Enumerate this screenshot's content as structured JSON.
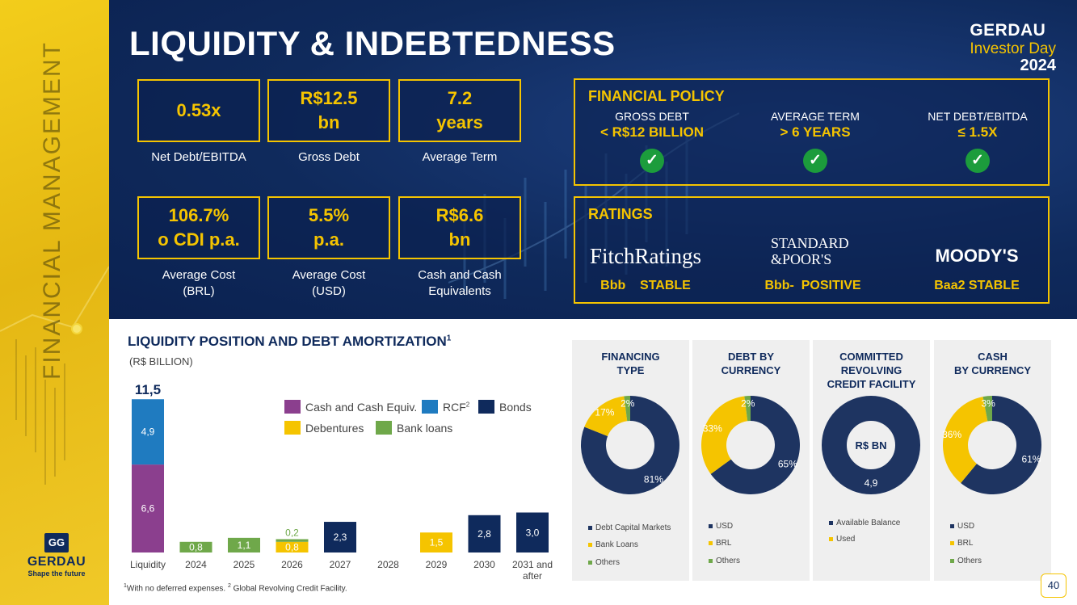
{
  "side": {
    "title": "FINANCIAL MANAGEMENT",
    "logo_name": "GERDAU",
    "logo_tag": "Shape the future"
  },
  "header": {
    "title": "LIQUIDITY & INDEBTEDNESS",
    "brand1": "GERDAU",
    "brand2": "Investor Day",
    "brand3": "2024"
  },
  "kpis": [
    {
      "value": "0.53x",
      "label": "Net Debt/EBITDA"
    },
    {
      "value": "R$12.5\nbn",
      "label": "Gross Debt"
    },
    {
      "value": "7.2\nyears",
      "label": "Average Term"
    },
    {
      "value": "106.7%\no CDI p.a.",
      "label": "Average Cost\n(BRL)"
    },
    {
      "value": "5.5%\np.a.",
      "label": "Average Cost\n(USD)"
    },
    {
      "value": "R$6.6\nbn",
      "label": "Cash and Cash\nEquivalents"
    }
  ],
  "policy": {
    "title": "FINANCIAL POLICY",
    "items": [
      {
        "label": "GROSS DEBT",
        "value": "< R$12 BILLION"
      },
      {
        "label": "AVERAGE TERM",
        "value": "> 6 YEARS"
      },
      {
        "label": "NET DEBT/EBITDA",
        "value": "≤ 1.5X"
      }
    ]
  },
  "ratings": {
    "title": "RATINGS",
    "agencies": [
      {
        "logo": "FitchRatings",
        "rating": "Bbb    STABLE"
      },
      {
        "logo1": "STANDARD",
        "logo2": "&POOR'S",
        "rating": "Bbb-  POSITIVE"
      },
      {
        "logo": "MOODY'S",
        "rating": "Baa2 STABLE"
      }
    ]
  },
  "liquidity": {
    "title": "LIQUIDITY POSITION AND DEBT AMORTIZATION",
    "title_sup": "1",
    "subtitle": "(R$ BILLION)",
    "legend": [
      {
        "label": "Cash and Cash Equiv.",
        "color": "#8b3f8e"
      },
      {
        "label": "RCF",
        "sup": "2",
        "color": "#1f7bc0"
      },
      {
        "label": "Bonds",
        "color": "#0f2a5c"
      },
      {
        "label": "Debentures",
        "color": "#f5c400"
      },
      {
        "label": "Bank loans",
        "color": "#6fa84a"
      }
    ],
    "footnote": "With no deferred expenses. ",
    "footnote2": " Global Revolving Credit Facility.",
    "footnote_sup1": "1",
    "footnote_sup2": "2"
  },
  "chart_data": [
    {
      "type": "bar",
      "title": "LIQUIDITY POSITION AND DEBT AMORTIZATION",
      "ylabel": "(R$ BILLION)",
      "categories": [
        "Liquidity",
        "2024",
        "2025",
        "2026",
        "2027",
        "2028",
        "2029",
        "2030",
        "2031 and after"
      ],
      "series": [
        {
          "name": "Cash and Cash Equiv.",
          "values": [
            6.6,
            0,
            0,
            0,
            0,
            0,
            0,
            0,
            0
          ],
          "labels": [
            "6,6",
            "",
            "",
            "",
            "",
            "",
            "",
            "",
            ""
          ]
        },
        {
          "name": "RCF",
          "values": [
            4.9,
            0,
            0,
            0,
            0,
            0,
            0,
            0,
            0
          ],
          "labels": [
            "4,9",
            "",
            "",
            "",
            "",
            "",
            "",
            "",
            ""
          ]
        },
        {
          "name": "Bonds",
          "values": [
            0,
            0,
            0,
            0,
            2.3,
            0,
            0,
            2.8,
            3.0
          ],
          "labels": [
            "",
            "",
            "",
            "",
            "2,3",
            "",
            "",
            "2,8",
            "3,0"
          ]
        },
        {
          "name": "Debentures",
          "values": [
            0,
            0,
            0,
            0.8,
            0,
            0,
            1.5,
            0,
            0
          ],
          "labels": [
            "",
            "",
            "",
            "0,8",
            "",
            "",
            "1,5",
            "",
            ""
          ]
        },
        {
          "name": "Bank loans",
          "values": [
            0,
            0.8,
            1.1,
            0.2,
            0,
            0,
            0,
            0,
            0
          ],
          "labels": [
            "",
            "0,8",
            "1,1",
            "0,2",
            "",
            "",
            "",
            "",
            ""
          ]
        }
      ],
      "total_label": "11,5",
      "ylim": [
        0,
        11.5
      ]
    },
    {
      "type": "pie",
      "title": "FINANCING TYPE",
      "slices": [
        {
          "name": "Debt Capital Markets",
          "value": 81,
          "label": "81%",
          "color": "#1e3461"
        },
        {
          "name": "Bank Loans",
          "value": 17,
          "label": "17%",
          "color": "#f5c400"
        },
        {
          "name": "Others",
          "value": 2,
          "label": "2%",
          "color": "#6fa84a"
        }
      ]
    },
    {
      "type": "pie",
      "title": "DEBT BY CURRENCY",
      "slices": [
        {
          "name": "USD",
          "value": 65,
          "label": "65%",
          "color": "#1e3461"
        },
        {
          "name": "BRL",
          "value": 33,
          "label": "33%",
          "color": "#f5c400"
        },
        {
          "name": "Others",
          "value": 2,
          "label": "2%",
          "color": "#6fa84a"
        }
      ]
    },
    {
      "type": "pie",
      "title": "COMMITTED REVOLVING CREDIT FACILITY",
      "center_label": "R$ BN",
      "slices": [
        {
          "name": "Available Balance",
          "value": 4.9,
          "label": "4,9",
          "color": "#1e3461"
        },
        {
          "name": "Used",
          "value": 0,
          "label": "",
          "color": "#f5c400"
        }
      ]
    },
    {
      "type": "pie",
      "title": "CASH BY CURRENCY",
      "slices": [
        {
          "name": "USD",
          "value": 61,
          "label": "61%",
          "color": "#1e3461"
        },
        {
          "name": "BRL",
          "value": 36,
          "label": "36%",
          "color": "#f5c400"
        },
        {
          "name": "Others",
          "value": 3,
          "label": "3%",
          "color": "#6fa84a"
        }
      ]
    }
  ],
  "panels": [
    {
      "title": "FINANCING\nTYPE"
    },
    {
      "title": "DEBT BY\nCURRENCY"
    },
    {
      "title": "COMMITTED REVOLVING\nCREDIT FACILITY"
    },
    {
      "title": "CASH\nBY CURRENCY"
    }
  ],
  "page_number": "40"
}
